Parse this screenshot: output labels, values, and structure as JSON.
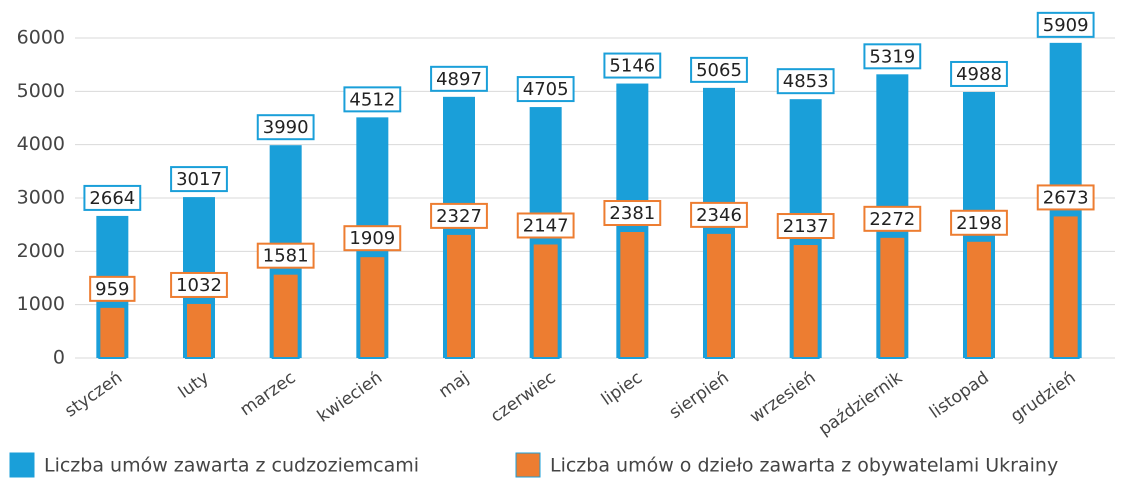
{
  "chart_data": {
    "type": "bar",
    "categories": [
      "styczeń",
      "luty",
      "marzec",
      "kwiecień",
      "maj",
      "czerwiec",
      "lipiec",
      "sierpień",
      "wrzesień",
      "październik",
      "listopad",
      "grudzień"
    ],
    "series": [
      {
        "name": "Liczba umów zawarta z cudzoziemcami",
        "color": "#1a9fd9",
        "values": [
          2664,
          3017,
          3990,
          4512,
          4897,
          4705,
          5146,
          5065,
          4853,
          5319,
          4988,
          5909
        ]
      },
      {
        "name": "Liczba umów o dzieło zawarta z obywatelami Ukrainy",
        "color": "#ed7d31",
        "values": [
          959,
          1032,
          1581,
          1909,
          2327,
          2147,
          2381,
          2346,
          2137,
          2272,
          2198,
          2673
        ]
      }
    ],
    "ylim": [
      0,
      6000
    ],
    "yticks": [
      0,
      1000,
      2000,
      3000,
      4000,
      5000,
      6000
    ],
    "grid": true,
    "legend": "bottom"
  }
}
